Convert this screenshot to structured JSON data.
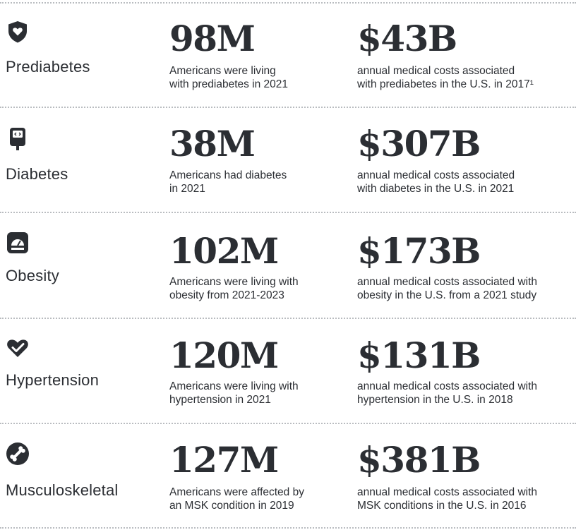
{
  "rows": [
    {
      "icon": "shield-heart-icon",
      "condition": "Prediabetes",
      "population": {
        "value": "98M",
        "lines": [
          "Americans were living",
          "with prediabetes in 2021"
        ]
      },
      "cost": {
        "value": "$43B",
        "lines": [
          "annual medical costs associated",
          "with prediabetes in the U.S. in 2017¹"
        ]
      }
    },
    {
      "icon": "glucose-meter-icon",
      "condition": "Diabetes",
      "population": {
        "value": "38M",
        "lines": [
          "Americans had diabetes",
          "in 2021"
        ]
      },
      "cost": {
        "value": "$307B",
        "lines": [
          "annual medical costs associated",
          "with diabetes in the U.S. in 2021"
        ]
      }
    },
    {
      "icon": "scale-icon",
      "condition": "Obesity",
      "population": {
        "value": "102M",
        "lines": [
          "Americans were living with",
          "obesity from 2021-2023"
        ]
      },
      "cost": {
        "value": "$173B",
        "lines": [
          "annual medical costs associated with",
          "obesity in the U.S. from a 2021 study"
        ]
      }
    },
    {
      "icon": "heart-check-icon",
      "condition": "Hypertension",
      "population": {
        "value": "120M",
        "lines": [
          "Americans were living with",
          "hypertension in 2021"
        ]
      },
      "cost": {
        "value": "$131B",
        "lines": [
          "annual medical costs associated with",
          "hypertension in the U.S. in 2018"
        ]
      }
    },
    {
      "icon": "bone-icon",
      "condition": "Musculoskeletal",
      "population": {
        "value": "127M",
        "lines": [
          "Americans were affected by",
          "an MSK condition in 2019"
        ]
      },
      "cost": {
        "value": "$381B",
        "lines": [
          "annual medical costs associated with",
          "MSK conditions in the U.S. in 2016"
        ]
      }
    }
  ]
}
